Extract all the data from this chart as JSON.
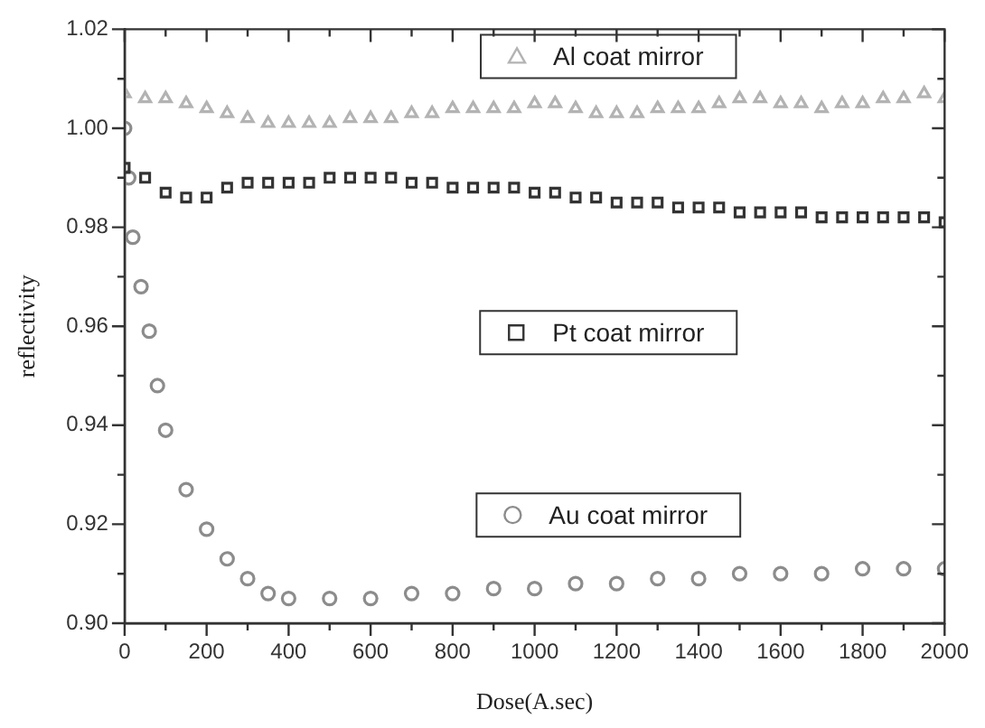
{
  "chart_data": {
    "type": "scatter",
    "xlabel": "Dose(A.sec)",
    "ylabel": "reflectivity",
    "xlim": [
      0,
      2000
    ],
    "ylim": [
      0.9,
      1.02
    ],
    "xticks": [
      0,
      {
        "value": 100,
        "label": null
      },
      200,
      {
        "value": 300,
        "label": null
      },
      400,
      {
        "value": 500,
        "label": null
      },
      600,
      {
        "value": 700,
        "label": null
      },
      800,
      {
        "value": 900,
        "label": null
      },
      1000,
      {
        "value": 1100,
        "label": null
      },
      1200,
      {
        "value": 1300,
        "label": null
      },
      1400,
      {
        "value": 1500,
        "label": null
      },
      1600,
      {
        "value": 1700,
        "label": null
      },
      1800,
      {
        "value": 1900,
        "label": null
      },
      2000
    ],
    "yticks": [
      {
        "value": 0.9,
        "label": "0.90"
      },
      {
        "value": 0.91,
        "label": null
      },
      {
        "value": 0.92,
        "label": "0.92"
      },
      {
        "value": 0.93,
        "label": null
      },
      {
        "value": 0.94,
        "label": "0.94"
      },
      {
        "value": 0.95,
        "label": null
      },
      {
        "value": 0.96,
        "label": "0.96"
      },
      {
        "value": 0.97,
        "label": null
      },
      {
        "value": 0.98,
        "label": "0.98"
      },
      {
        "value": 0.99,
        "label": null
      },
      {
        "value": 1.0,
        "label": "1.00"
      },
      {
        "value": 1.01,
        "label": null
      },
      {
        "value": 1.02,
        "label": "1.02"
      }
    ],
    "grid": false,
    "legend": "right",
    "series": [
      {
        "name": "Al coat mirror",
        "color": "#b3b3b3",
        "marker": "triangle",
        "x": [
          0,
          50,
          100,
          150,
          200,
          250,
          300,
          350,
          400,
          450,
          500,
          550,
          600,
          650,
          700,
          750,
          800,
          850,
          900,
          950,
          1000,
          1050,
          1100,
          1150,
          1200,
          1250,
          1300,
          1350,
          1400,
          1450,
          1500,
          1550,
          1600,
          1650,
          1700,
          1750,
          1800,
          1850,
          1900,
          1950,
          2000
        ],
        "values": [
          1.007,
          1.006,
          1.006,
          1.005,
          1.004,
          1.003,
          1.002,
          1.001,
          1.001,
          1.001,
          1.001,
          1.002,
          1.002,
          1.002,
          1.003,
          1.003,
          1.004,
          1.004,
          1.004,
          1.004,
          1.005,
          1.005,
          1.004,
          1.003,
          1.003,
          1.003,
          1.004,
          1.004,
          1.004,
          1.005,
          1.006,
          1.006,
          1.005,
          1.005,
          1.004,
          1.005,
          1.005,
          1.006,
          1.006,
          1.007,
          1.006
        ]
      },
      {
        "name": "Pt coat mirror",
        "color": "#333333",
        "marker": "square",
        "x": [
          0,
          50,
          100,
          150,
          200,
          250,
          300,
          350,
          400,
          450,
          500,
          550,
          600,
          650,
          700,
          750,
          800,
          850,
          900,
          950,
          1000,
          1050,
          1100,
          1150,
          1200,
          1250,
          1300,
          1350,
          1400,
          1450,
          1500,
          1550,
          1600,
          1650,
          1700,
          1750,
          1800,
          1850,
          1900,
          1950,
          2000
        ],
        "values": [
          0.992,
          0.99,
          0.987,
          0.986,
          0.986,
          0.988,
          0.989,
          0.989,
          0.989,
          0.989,
          0.99,
          0.99,
          0.99,
          0.99,
          0.989,
          0.989,
          0.988,
          0.988,
          0.988,
          0.988,
          0.987,
          0.987,
          0.986,
          0.986,
          0.985,
          0.985,
          0.985,
          0.984,
          0.984,
          0.984,
          0.983,
          0.983,
          0.983,
          0.983,
          0.982,
          0.982,
          0.982,
          0.982,
          0.982,
          0.982,
          0.981
        ]
      },
      {
        "name": "Au coat mirror",
        "color": "#8c8c8c",
        "marker": "circle",
        "x": [
          0,
          10,
          20,
          40,
          60,
          80,
          100,
          150,
          200,
          250,
          300,
          350,
          400,
          500,
          600,
          700,
          800,
          900,
          1000,
          1100,
          1200,
          1300,
          1400,
          1500,
          1600,
          1700,
          1800,
          1900,
          2000
        ],
        "values": [
          1.0,
          0.99,
          0.978,
          0.968,
          0.959,
          0.948,
          0.939,
          0.927,
          0.919,
          0.913,
          0.909,
          0.906,
          0.905,
          0.905,
          0.905,
          0.906,
          0.906,
          0.907,
          0.907,
          0.908,
          0.908,
          0.909,
          0.909,
          0.91,
          0.91,
          0.91,
          0.911,
          0.911,
          0.911
        ]
      }
    ]
  }
}
